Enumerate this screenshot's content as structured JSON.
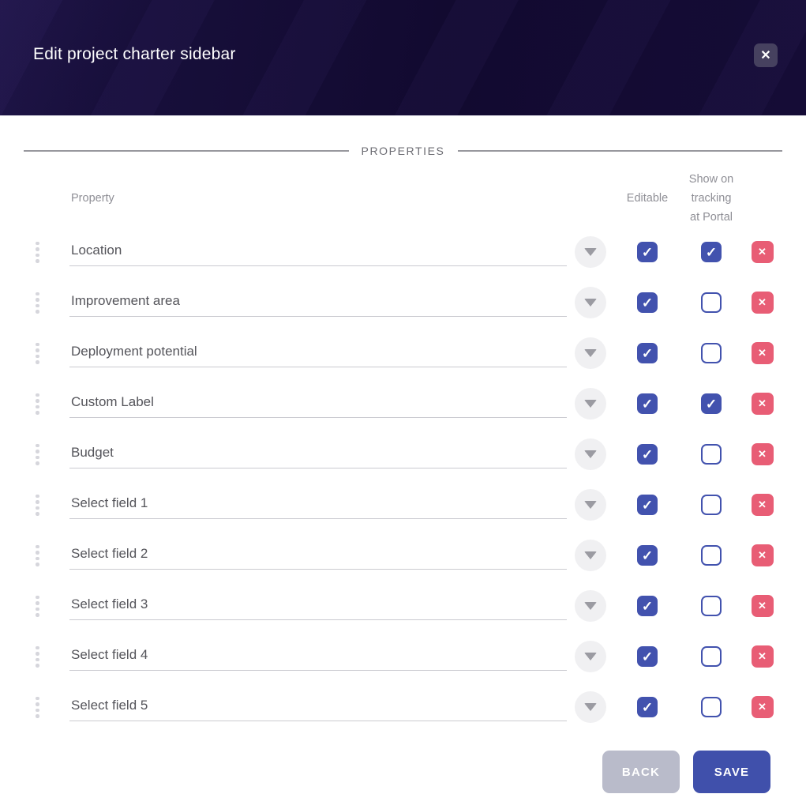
{
  "modal": {
    "title": "Edit project charter sidebar"
  },
  "icons": {
    "close": "✕",
    "check": "✓",
    "delete": "✕",
    "chevron": "chevron-down-icon",
    "drag": "drag-dots-icon"
  },
  "section_title": "PROPERTIES",
  "columns": {
    "property": "Property",
    "editable": "Editable",
    "show_lines": [
      "Show on",
      "tracking",
      "at Portal"
    ]
  },
  "rows": [
    {
      "name": "Location",
      "editable": true,
      "show_on_tracking": true
    },
    {
      "name": "Improvement area",
      "editable": true,
      "show_on_tracking": false
    },
    {
      "name": "Deployment potential",
      "editable": true,
      "show_on_tracking": false
    },
    {
      "name": "Custom Label",
      "editable": true,
      "show_on_tracking": true
    },
    {
      "name": "Budget",
      "editable": true,
      "show_on_tracking": false
    },
    {
      "name": "Select field 1",
      "editable": true,
      "show_on_tracking": false
    },
    {
      "name": "Select field 2",
      "editable": true,
      "show_on_tracking": false
    },
    {
      "name": "Select field 3",
      "editable": true,
      "show_on_tracking": false
    },
    {
      "name": "Select field 4",
      "editable": true,
      "show_on_tracking": false
    },
    {
      "name": "Select field 5",
      "editable": true,
      "show_on_tracking": false
    }
  ],
  "footer": {
    "back": "BACK",
    "save": "SAVE"
  },
  "colors": {
    "header_bg": "#140c33",
    "accent_indigo": "#4252ae",
    "danger_red": "#e85d75",
    "back_button": "#b9bbca",
    "save_button": "#4050ab"
  }
}
